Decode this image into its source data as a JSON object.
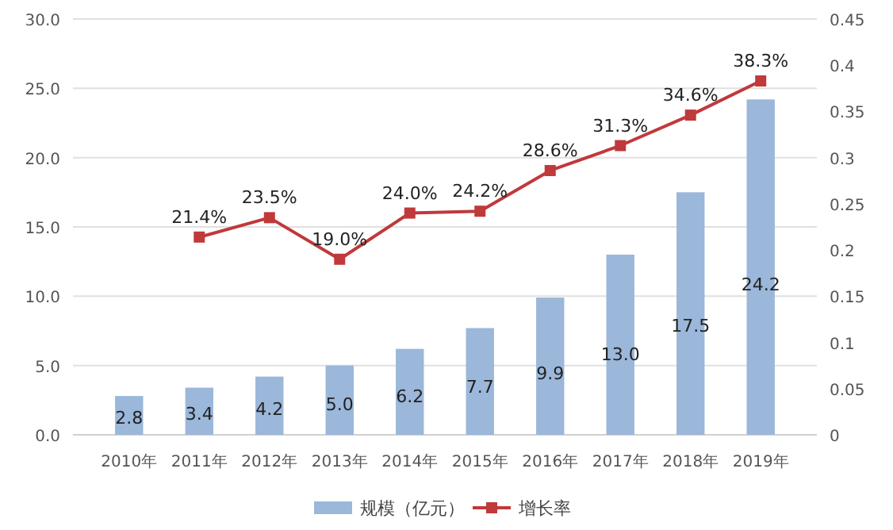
{
  "chart_data": {
    "type": "bar",
    "categories": [
      "2010年",
      "2011年",
      "2012年",
      "2013年",
      "2014年",
      "2015年",
      "2016年",
      "2017年",
      "2018年",
      "2019年"
    ],
    "series": [
      {
        "name": "规模（亿元）",
        "color": "#9bb7da",
        "values": [
          2.8,
          3.4,
          4.2,
          5.0,
          6.2,
          7.7,
          9.9,
          13.0,
          17.5,
          24.2
        ],
        "value_labels": [
          "2.8",
          "3.4",
          "4.2",
          "5.0",
          "6.2",
          "7.7",
          "9.9",
          "13.0",
          "17.5",
          "24.2"
        ]
      },
      {
        "name": "增长率",
        "type": "line",
        "axis": "y2",
        "color": "#c0393b",
        "marker": "square",
        "values": [
          null,
          0.214,
          0.235,
          0.19,
          0.24,
          0.242,
          0.286,
          0.313,
          0.346,
          0.383
        ],
        "value_labels": [
          null,
          "21.4%",
          "23.5%",
          "19.0%",
          "24.0%",
          "24.2%",
          "28.6%",
          "31.3%",
          "34.6%",
          "38.3%"
        ]
      }
    ],
    "ylim": [
      0,
      30
    ],
    "yticks": [
      {
        "value": 0,
        "label": "0.0"
      },
      {
        "value": 5,
        "label": "5.0"
      },
      {
        "value": 10,
        "label": "10.0"
      },
      {
        "value": 15,
        "label": "15.0"
      },
      {
        "value": 20,
        "label": "20.0"
      },
      {
        "value": 25,
        "label": "25.0"
      },
      {
        "value": 30,
        "label": "30.0"
      }
    ],
    "y2lim": [
      0,
      0.45
    ],
    "y2ticks": [
      0,
      0.05,
      0.1,
      0.15,
      0.2,
      0.25,
      0.3,
      0.35,
      0.4,
      0.45
    ],
    "grid": "y",
    "legend": "bottom"
  }
}
